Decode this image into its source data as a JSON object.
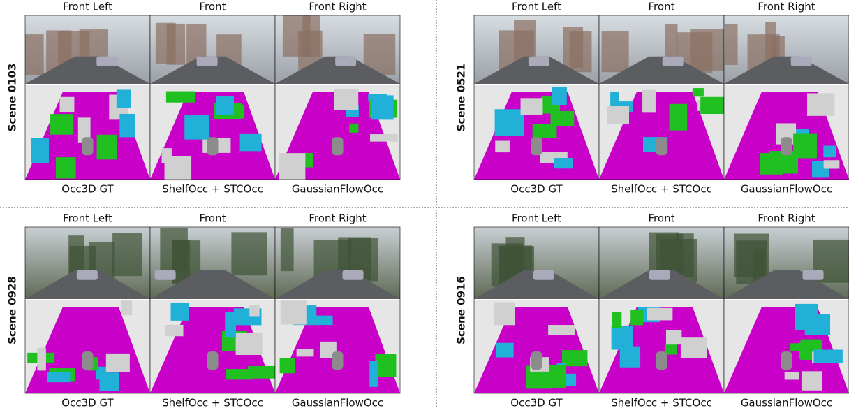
{
  "panels": [
    {
      "scene": "Scene 0103",
      "views": [
        "Front Left",
        "Front",
        "Front Right"
      ],
      "methods": [
        "Occ3D GT",
        "ShelfOcc + STCOcc",
        "GaussianFlowOcc"
      ]
    },
    {
      "scene": "Scene 0521",
      "views": [
        "Front Left",
        "Front",
        "Front Right"
      ],
      "methods": [
        "Occ3D GT",
        "ShelfOcc + STCOcc",
        "GaussianFlowOcc"
      ]
    },
    {
      "scene": "Scene 0928",
      "views": [
        "Front Left",
        "Front",
        "Front Right"
      ],
      "methods": [
        "Occ3D GT",
        "ShelfOcc + STCOcc",
        "GaussianFlowOcc"
      ]
    },
    {
      "scene": "Scene 0916",
      "views": [
        "Front Left",
        "Front",
        "Front Right"
      ],
      "methods": [
        "Occ3D GT",
        "ShelfOcc + STCOcc",
        "GaussianFlowOcc"
      ]
    }
  ]
}
